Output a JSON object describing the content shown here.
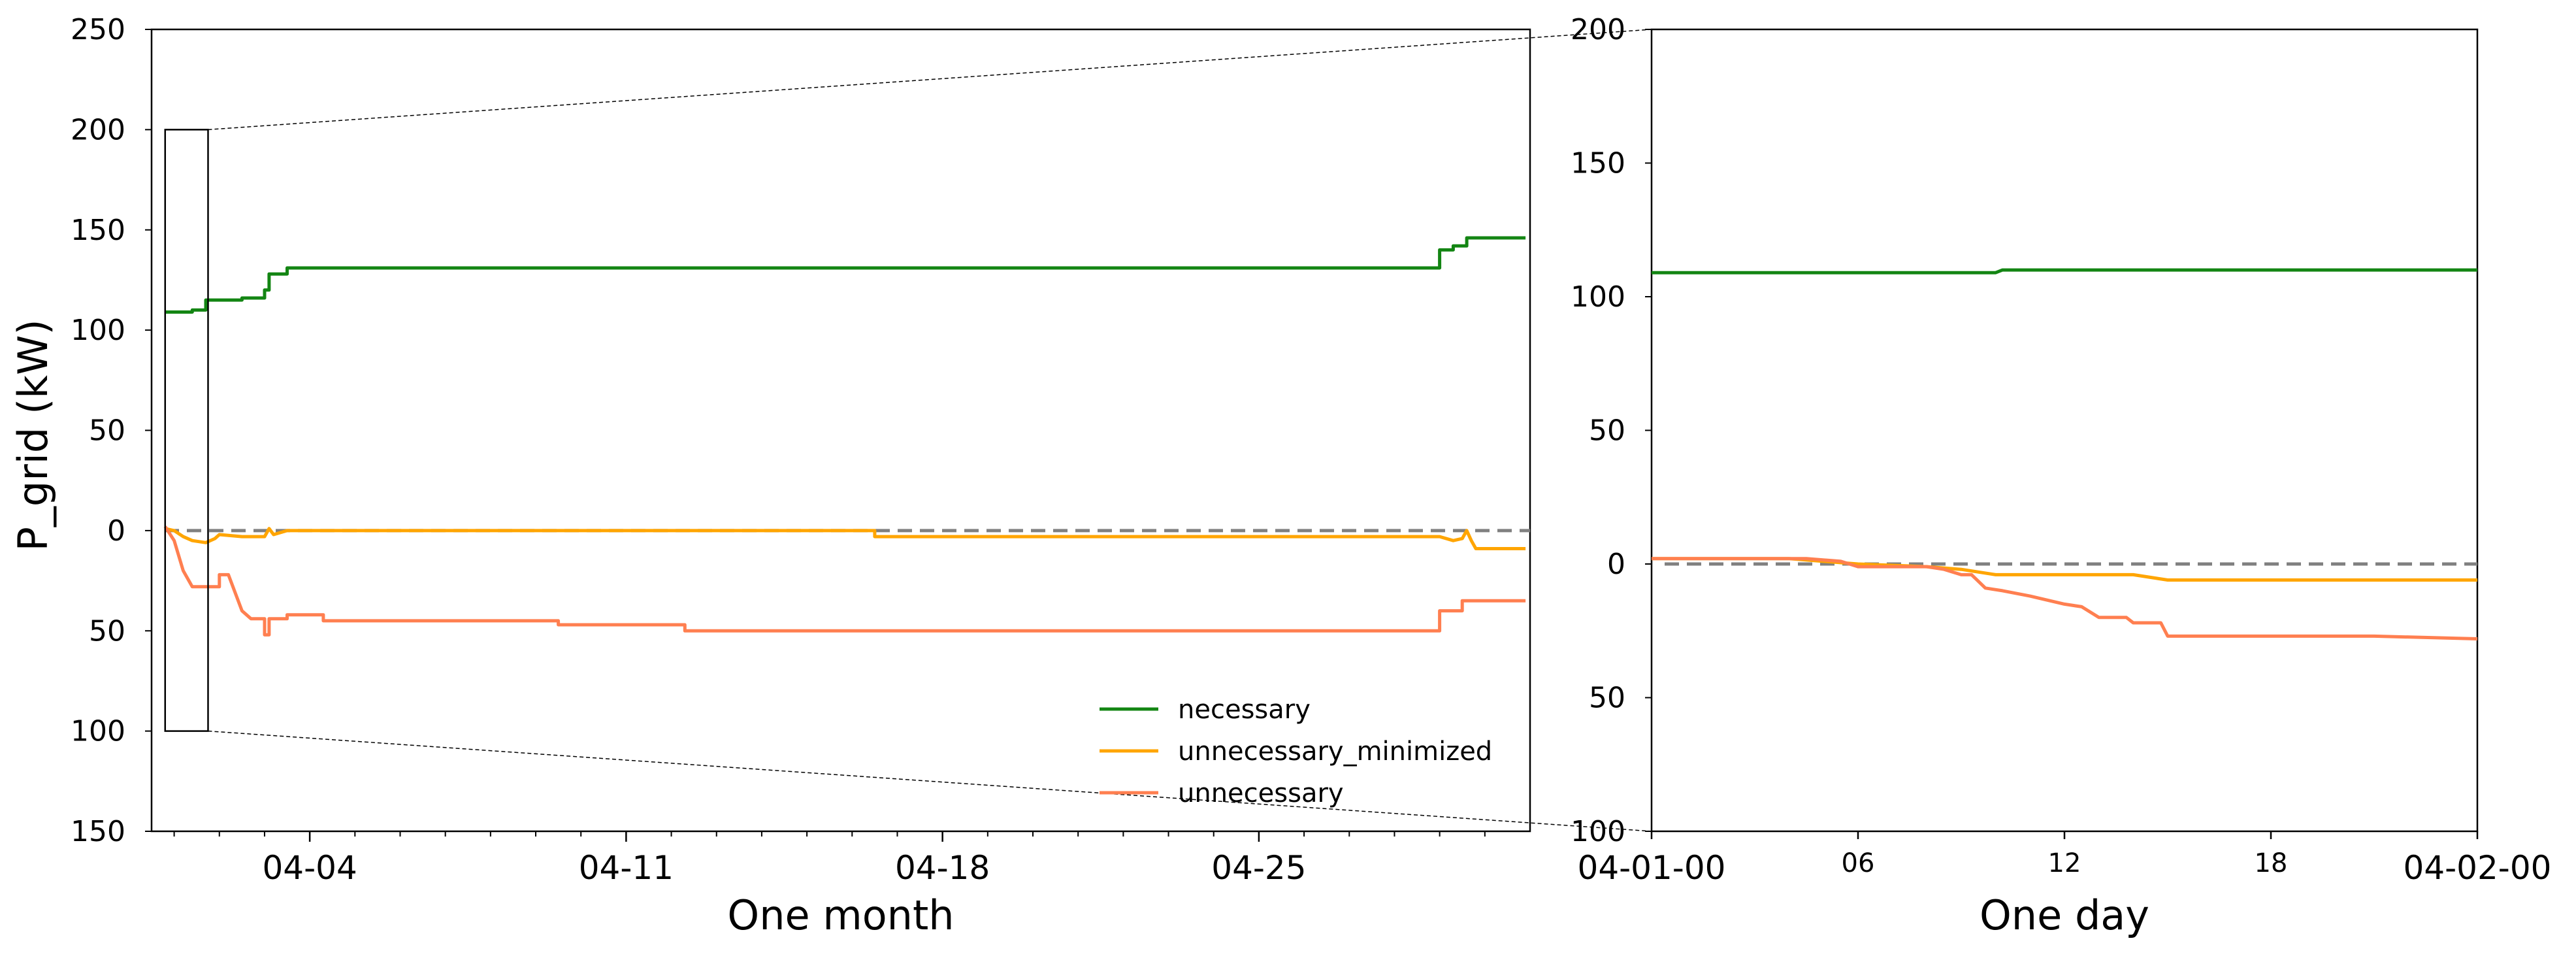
{
  "figure": {
    "ylabel": "P_grid (kW)"
  },
  "chart_data": [
    {
      "type": "line",
      "panel": "month",
      "xlabel": "One month",
      "ylabel": "P_grid (kW)",
      "xlim_days": [
        0.5,
        31
      ],
      "ylim": [
        -150,
        250
      ],
      "yticks": [
        250,
        200,
        150,
        100,
        50,
        0,
        -50,
        -100,
        -150
      ],
      "ytick_labels": [
        "250",
        "200",
        "150",
        "100",
        "50",
        "0",
        "50",
        "100",
        "150"
      ],
      "xticks_major": [
        {
          "day": 4,
          "label": "04-04"
        },
        {
          "day": 11,
          "label": "04-11"
        },
        {
          "day": 18,
          "label": "04-18"
        },
        {
          "day": 25,
          "label": "04-25"
        }
      ],
      "xticks_minor_days": [
        1,
        2,
        3,
        5,
        6,
        7,
        8,
        9,
        10,
        12,
        13,
        14,
        15,
        16,
        17,
        19,
        20,
        21,
        22,
        23,
        24,
        26,
        27,
        28,
        29,
        30
      ],
      "reference_line": {
        "y": 0,
        "style": "dashed",
        "color": "#808080"
      },
      "zoom_box": {
        "x": [
          0.8,
          1.75
        ],
        "y": [
          -100,
          200
        ]
      },
      "legend": {
        "placement": "lower-right"
      },
      "series": [
        {
          "name": "necessary",
          "color": "#138513",
          "x": [
            0.8,
            1.4,
            1.4,
            1.7,
            1.7,
            2.5,
            2.5,
            3.0,
            3.0,
            3.1,
            3.1,
            3.5,
            3.5,
            3.5,
            29.0,
            29.0,
            29.3,
            29.3,
            29.6,
            29.6,
            30.9
          ],
          "y": [
            109,
            109,
            110,
            110,
            115,
            115,
            116,
            116,
            120,
            120,
            128,
            128,
            131,
            131,
            131,
            140,
            140,
            142,
            142,
            146,
            146
          ]
        },
        {
          "name": "unnecessary_minimized",
          "color": "#FFA500",
          "x": [
            0.8,
            1.0,
            1.2,
            1.4,
            1.7,
            1.9,
            2.0,
            2.5,
            3.0,
            3.1,
            3.2,
            3.5,
            16.5,
            16.5,
            29.0,
            29.3,
            29.5,
            29.6,
            29.7,
            29.8,
            30.9
          ],
          "y": [
            1,
            0,
            -3,
            -5,
            -6,
            -4,
            -2,
            -3,
            -3,
            1,
            -2,
            0,
            0,
            -3,
            -3,
            -5,
            -4,
            0,
            -5,
            -9,
            -9
          ]
        },
        {
          "name": "unnecessary",
          "color": "#FF7F50",
          "x": [
            0.8,
            1.0,
            1.2,
            1.4,
            1.5,
            2.0,
            2.0,
            2.2,
            2.5,
            2.7,
            3.0,
            3.0,
            3.1,
            3.1,
            3.5,
            3.5,
            4.3,
            4.3,
            9.5,
            9.5,
            12.3,
            12.3,
            29.0,
            29.0,
            29.5,
            29.5,
            30.9
          ],
          "y": [
            2,
            -5,
            -20,
            -28,
            -28,
            -28,
            -22,
            -22,
            -40,
            -44,
            -44,
            -52,
            -52,
            -44,
            -44,
            -42,
            -42,
            -45,
            -45,
            -47,
            -47,
            -50,
            -50,
            -40,
            -40,
            -35,
            -35
          ]
        }
      ]
    },
    {
      "type": "line",
      "panel": "day",
      "xlabel": "One day",
      "xlim_hours": [
        0,
        24
      ],
      "ylim": [
        -100,
        200
      ],
      "yticks": [
        200,
        150,
        100,
        50,
        0,
        -50,
        -100
      ],
      "ytick_labels": [
        "200",
        "150",
        "100",
        "50",
        "0",
        "50",
        "100"
      ],
      "xticks": [
        {
          "hour": 0,
          "label": "04-01-00"
        },
        {
          "hour": 6,
          "label": "06"
        },
        {
          "hour": 12,
          "label": "12"
        },
        {
          "hour": 18,
          "label": "18"
        },
        {
          "hour": 24,
          "label": "04-02-00"
        }
      ],
      "reference_line": {
        "y": 0,
        "style": "dashed",
        "color": "#808080"
      },
      "series": [
        {
          "name": "necessary",
          "color": "#138513",
          "x": [
            0,
            10,
            10.2,
            24
          ],
          "y": [
            109,
            109,
            110,
            110
          ]
        },
        {
          "name": "unnecessary_minimized",
          "color": "#FFA500",
          "x": [
            0,
            4,
            6,
            8,
            9,
            10,
            11,
            14,
            15,
            24
          ],
          "y": [
            2,
            2,
            0,
            -1,
            -2,
            -4,
            -4,
            -4,
            -6,
            -6
          ]
        },
        {
          "name": "unnecessary",
          "color": "#FF7F50",
          "x": [
            0,
            4.5,
            5.5,
            6,
            8,
            8.5,
            9,
            9.3,
            9.7,
            10.2,
            11,
            12,
            12.5,
            13,
            13.8,
            14,
            14.8,
            15,
            21,
            24
          ],
          "y": [
            2,
            2,
            1,
            -1,
            -1,
            -2,
            -4,
            -4,
            -9,
            -10,
            -12,
            -15,
            -16,
            -20,
            -20,
            -22,
            -22,
            -27,
            -27,
            -28
          ]
        }
      ]
    }
  ]
}
